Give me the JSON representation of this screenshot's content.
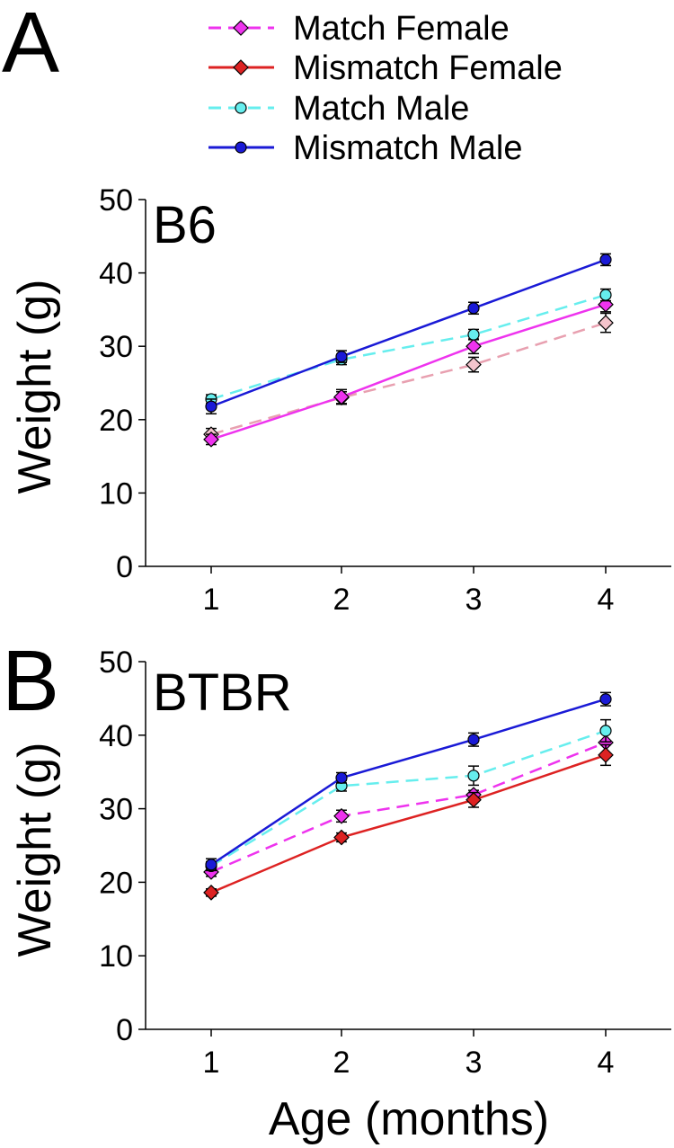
{
  "legend": [
    {
      "name": "Match Female",
      "color": "#ee33ee",
      "marker": "diamond",
      "dash": true
    },
    {
      "name": "Mismatch Female",
      "color": "#dd2222",
      "marker": "diamond",
      "dash": false
    },
    {
      "name": "Match Male",
      "color": "#66eeee",
      "marker": "circle",
      "dash": true
    },
    {
      "name": "Mismatch Male",
      "color": "#1a1ad6",
      "marker": "circle",
      "dash": false
    }
  ],
  "xlabel": "Age (months)",
  "chart_data": [
    {
      "type": "line",
      "panel": "A",
      "title": "B6",
      "ylabel": "Weight (g)",
      "x": [
        1,
        2,
        3,
        4
      ],
      "xticks": [
        "1",
        "2",
        "3",
        "4"
      ],
      "yticks": [
        "0",
        "10",
        "20",
        "30",
        "40",
        "50"
      ],
      "ylim": [
        0,
        50
      ],
      "series": [
        {
          "name": "Match Female",
          "color": "#e8a0b0",
          "marker_fill": "#f4c4cc",
          "dash": true,
          "marker": "diamond",
          "values": [
            18.0,
            23.0,
            27.5,
            33.2
          ],
          "err": [
            0.8,
            0.8,
            1.0,
            1.3
          ]
        },
        {
          "name": "Mismatch Female",
          "color": "#ee33ee",
          "marker_fill": "#ee33ee",
          "dash": false,
          "marker": "diamond",
          "values": [
            17.3,
            23.1,
            30.0,
            35.7
          ],
          "err": [
            0.7,
            1.0,
            1.0,
            1.0
          ]
        },
        {
          "name": "Match Male",
          "color": "#66eeee",
          "marker_fill": "#66eeee",
          "dash": true,
          "marker": "circle",
          "values": [
            22.8,
            28.2,
            31.6,
            37.0
          ],
          "err": [
            0.6,
            0.7,
            0.7,
            0.8
          ]
        },
        {
          "name": "Mismatch Male",
          "color": "#1a1ad6",
          "marker_fill": "#1a1ad6",
          "dash": false,
          "marker": "circle",
          "values": [
            21.8,
            28.6,
            35.2,
            41.8
          ],
          "err": [
            1.0,
            0.8,
            0.8,
            0.8
          ]
        }
      ]
    },
    {
      "type": "line",
      "panel": "B",
      "title": "BTBR",
      "ylabel": "Weight (g)",
      "x": [
        1,
        2,
        3,
        4
      ],
      "xticks": [
        "1",
        "2",
        "3",
        "4"
      ],
      "yticks": [
        "0",
        "10",
        "20",
        "30",
        "40",
        "50"
      ],
      "ylim": [
        0,
        50
      ],
      "series": [
        {
          "name": "Match Female",
          "color": "#ee33ee",
          "marker_fill": "#ee33ee",
          "dash": true,
          "marker": "diamond",
          "values": [
            21.4,
            29.0,
            31.9,
            39.0
          ],
          "err": [
            0.6,
            0.8,
            0.6,
            1.5
          ]
        },
        {
          "name": "Mismatch Female",
          "color": "#dd2222",
          "marker_fill": "#dd2222",
          "dash": false,
          "marker": "diamond",
          "values": [
            18.6,
            26.1,
            31.2,
            37.3
          ],
          "err": [
            0.5,
            0.6,
            1.0,
            1.4
          ]
        },
        {
          "name": "Match Male",
          "color": "#66eeee",
          "marker_fill": "#66eeee",
          "dash": true,
          "marker": "circle",
          "values": [
            22.2,
            33.1,
            34.5,
            40.6
          ],
          "err": [
            0.6,
            0.7,
            1.3,
            1.5
          ]
        },
        {
          "name": "Mismatch Male",
          "color": "#1a1ad6",
          "marker_fill": "#1a1ad6",
          "dash": false,
          "marker": "circle",
          "values": [
            22.4,
            34.2,
            39.4,
            44.9
          ],
          "err": [
            0.8,
            0.7,
            0.9,
            0.9
          ]
        }
      ]
    }
  ]
}
